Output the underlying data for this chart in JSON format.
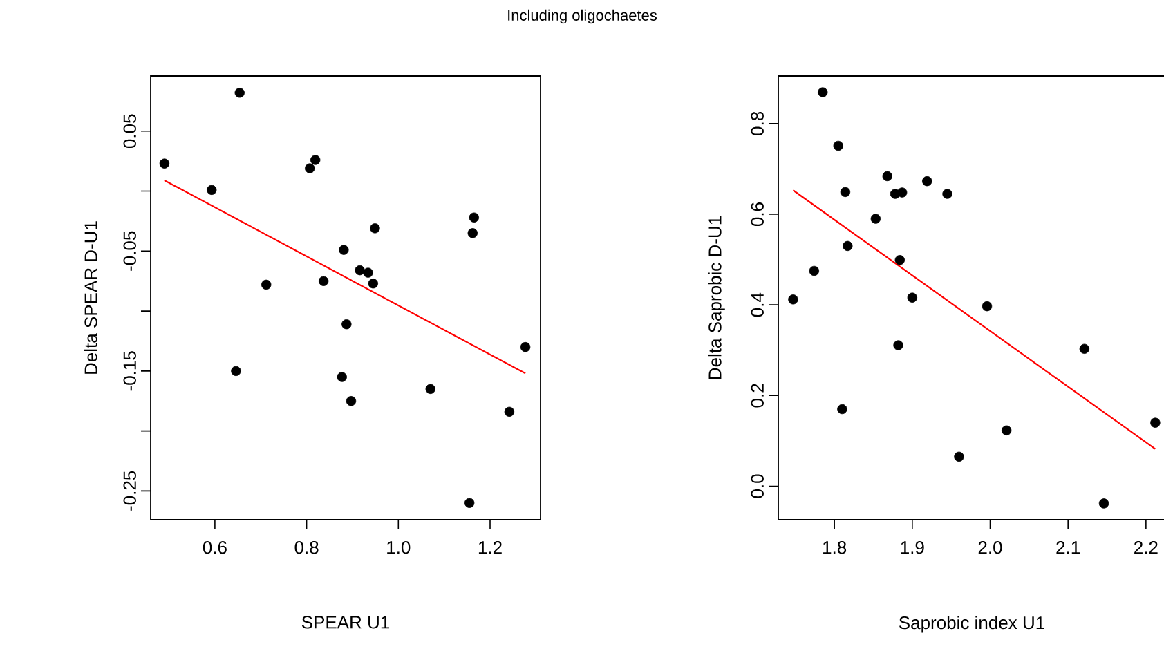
{
  "chart_data": [
    {
      "type": "scatter",
      "title": "Including oligochaetes",
      "xlabel": "SPEAR U1",
      "ylabel": "Delta SPEAR D-U1",
      "xlim": [
        0.46,
        1.31
      ],
      "ylim": [
        -0.274,
        0.096
      ],
      "xticks": [
        0.6,
        0.8,
        {
          "value": 1.0,
          "label": "1.0"
        },
        1.2
      ],
      "yticks": [
        {
          "value": 0.05,
          "label": "0.05"
        },
        {
          "value": 0,
          "label": null
        },
        {
          "value": -0.05,
          "label": "-0.05"
        },
        {
          "value": -0.1,
          "label": null
        },
        {
          "value": -0.15,
          "label": "-0.15"
        },
        {
          "value": -0.2,
          "label": null
        },
        {
          "value": -0.25,
          "label": "-0.25"
        }
      ],
      "grid": false,
      "series": [
        {
          "marker": "circle",
          "color": "#000000",
          "x": [
            0.49,
            0.654,
            0.593,
            0.807,
            0.819,
            0.949,
            1.165,
            1.162,
            0.881,
            0.916,
            0.934,
            0.945,
            0.837,
            0.712,
            0.887,
            0.646,
            0.877,
            0.897,
            1.07,
            1.242,
            1.277,
            1.155
          ],
          "values": [
            0.023,
            0.082,
            0.001,
            0.019,
            0.026,
            -0.031,
            -0.022,
            -0.035,
            -0.049,
            -0.066,
            -0.068,
            -0.077,
            -0.075,
            -0.078,
            -0.111,
            -0.15,
            -0.155,
            -0.175,
            -0.165,
            -0.184,
            -0.13,
            -0.26
          ]
        },
        {
          "type": "line",
          "marker": "none",
          "color": "#ff0000",
          "x": [
            0.49,
            1.277
          ],
          "values": [
            0.009,
            -0.152
          ]
        }
      ]
    },
    {
      "type": "scatter",
      "xlabel": "Saprobic index U1",
      "ylabel": "Delta Saprobic D-U1",
      "xlim": [
        1.728,
        2.225
      ],
      "ylim": [
        -0.074,
        0.905
      ],
      "xticks": [
        1.8,
        1.9,
        {
          "value": 2.0,
          "label": "2.0"
        },
        2.1,
        2.2
      ],
      "yticks": [
        {
          "value": 0,
          "label": "0.0"
        },
        0.2,
        0.4,
        0.6,
        0.8
      ],
      "grid": false,
      "series": [
        {
          "marker": "circle",
          "color": "#000000",
          "x": [
            1.747,
            1.774,
            1.785,
            1.805,
            1.814,
            1.817,
            1.81,
            1.853,
            1.868,
            1.878,
            1.887,
            1.884,
            1.882,
            1.9,
            1.919,
            1.945,
            1.96,
            1.996,
            2.021,
            2.121,
            2.146,
            2.212
          ],
          "values": [
            0.412,
            0.475,
            0.869,
            0.751,
            0.649,
            0.53,
            0.17,
            0.59,
            0.684,
            0.645,
            0.648,
            0.499,
            0.311,
            0.416,
            0.673,
            0.645,
            0.065,
            0.397,
            0.123,
            0.303,
            -0.038,
            0.14
          ]
        },
        {
          "type": "line",
          "marker": "none",
          "color": "#ff0000",
          "x": [
            1.747,
            2.212
          ],
          "values": [
            0.653,
            0.082
          ]
        }
      ]
    }
  ]
}
